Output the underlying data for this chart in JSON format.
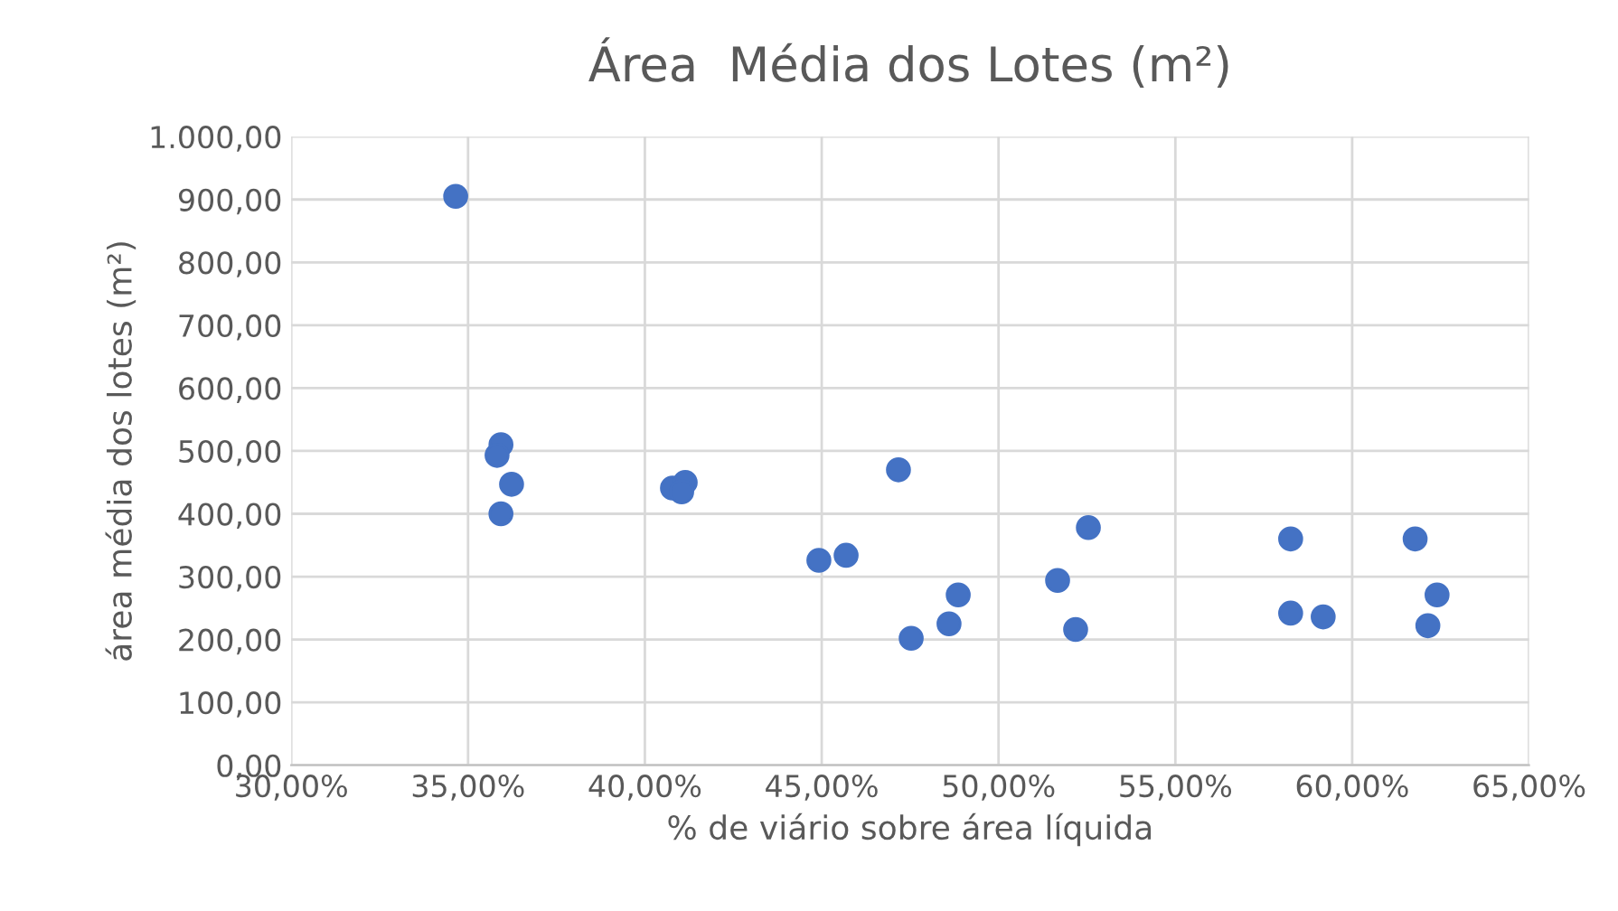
{
  "chart_data": {
    "type": "scatter",
    "title": "Área  Média dos Lotes (m²)",
    "xlabel": "% de viário sobre área líquida",
    "ylabel": "área média dos lotes (m²)",
    "x": [
      34.65,
      35.93,
      35.82,
      36.23,
      35.93,
      40.78,
      41.14,
      41.04,
      44.92,
      45.69,
      47.17,
      47.53,
      48.86,
      48.6,
      51.67,
      52.54,
      52.18,
      58.26,
      58.26,
      59.18,
      61.78,
      62.4,
      62.14
    ],
    "series": [
      {
        "color": "#4472c4",
        "values": [
          905,
          510,
          493,
          447,
          400,
          441,
          450,
          435,
          326,
          334,
          470,
          202,
          271,
          225,
          294,
          378,
          216,
          360,
          242,
          236,
          360,
          271,
          222
        ]
      }
    ],
    "marker": "circle",
    "grid": true,
    "legend": false,
    "xlim": [
      30,
      65
    ],
    "xticks": [
      {
        "value": 30,
        "label": "30,00%"
      },
      {
        "value": 35,
        "label": "35,00%"
      },
      {
        "value": 40,
        "label": "40,00%"
      },
      {
        "value": 45,
        "label": "45,00%"
      },
      {
        "value": 50,
        "label": "50,00%"
      },
      {
        "value": 55,
        "label": "55,00%"
      },
      {
        "value": 60,
        "label": "60,00%"
      },
      {
        "value": 65,
        "label": "65,00%"
      }
    ],
    "ylim": [
      0,
      1000
    ],
    "yticks": [
      {
        "value": 0,
        "label": "0,00"
      },
      {
        "value": 100,
        "label": "100,00"
      },
      {
        "value": 200,
        "label": "200,00"
      },
      {
        "value": 300,
        "label": "300,00"
      },
      {
        "value": 400,
        "label": "400,00"
      },
      {
        "value": 500,
        "label": "500,00"
      },
      {
        "value": 600,
        "label": "600,00"
      },
      {
        "value": 700,
        "label": "700,00"
      },
      {
        "value": 800,
        "label": "800,00"
      },
      {
        "value": 900,
        "label": "900,00"
      },
      {
        "value": 1000,
        "label": "1.000,00"
      }
    ]
  }
}
